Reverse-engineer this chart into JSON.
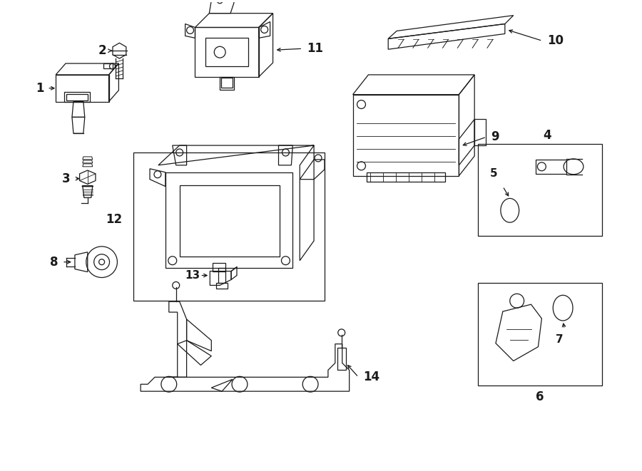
{
  "bg_color": "#ffffff",
  "line_color": "#1a1a1a",
  "fig_width": 9.0,
  "fig_height": 6.61,
  "dpi": 100,
  "lw": 0.9
}
